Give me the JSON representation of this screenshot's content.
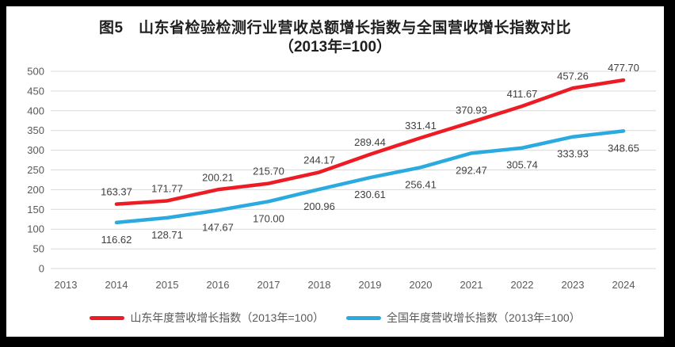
{
  "frame": {
    "border_color": "#000000",
    "background_color": "#ffffff"
  },
  "chart_data": {
    "type": "line",
    "title": "图5　山东省检验检测行业营收总额增长指数与全国营收增长指数对比",
    "subtitle": "（2013年=100）",
    "categories": [
      "2013",
      "2014",
      "2015",
      "2016",
      "2017",
      "2018",
      "2019",
      "2020",
      "2021",
      "2022",
      "2023",
      "2024"
    ],
    "ylim": [
      0,
      500
    ],
    "ytick": 50,
    "grid": "horizontal",
    "gridline_color": "#d9d9d9",
    "axis_text_color": "#595959",
    "label_text_color": "#404040",
    "legend_position": "bottom",
    "series": [
      {
        "name": "山东年度营收增长指数（2013年=100）",
        "color": "#ed1c24",
        "label_position": "above",
        "values": [
          null,
          163.37,
          171.77,
          200.21,
          215.7,
          244.17,
          289.44,
          331.41,
          370.93,
          411.67,
          457.26,
          477.7
        ],
        "labels": [
          "",
          "163.37",
          "171.77",
          "200.21",
          "215.70",
          "244.17",
          "289.44",
          "331.41",
          "370.93",
          "411.67",
          "457.26",
          "477.70"
        ]
      },
      {
        "name": "全国年度营收增长指数（2013年=100）",
        "color": "#2baadf",
        "label_position": "below",
        "values": [
          null,
          116.62,
          128.71,
          147.67,
          170.0,
          200.96,
          230.61,
          256.41,
          292.47,
          305.74,
          333.93,
          348.65
        ],
        "labels": [
          "",
          "116.62",
          "128.71",
          "147.67",
          "170.00",
          "200.96",
          "230.61",
          "256.41",
          "292.47",
          "305.74",
          "333.93",
          "348.65"
        ]
      }
    ]
  }
}
